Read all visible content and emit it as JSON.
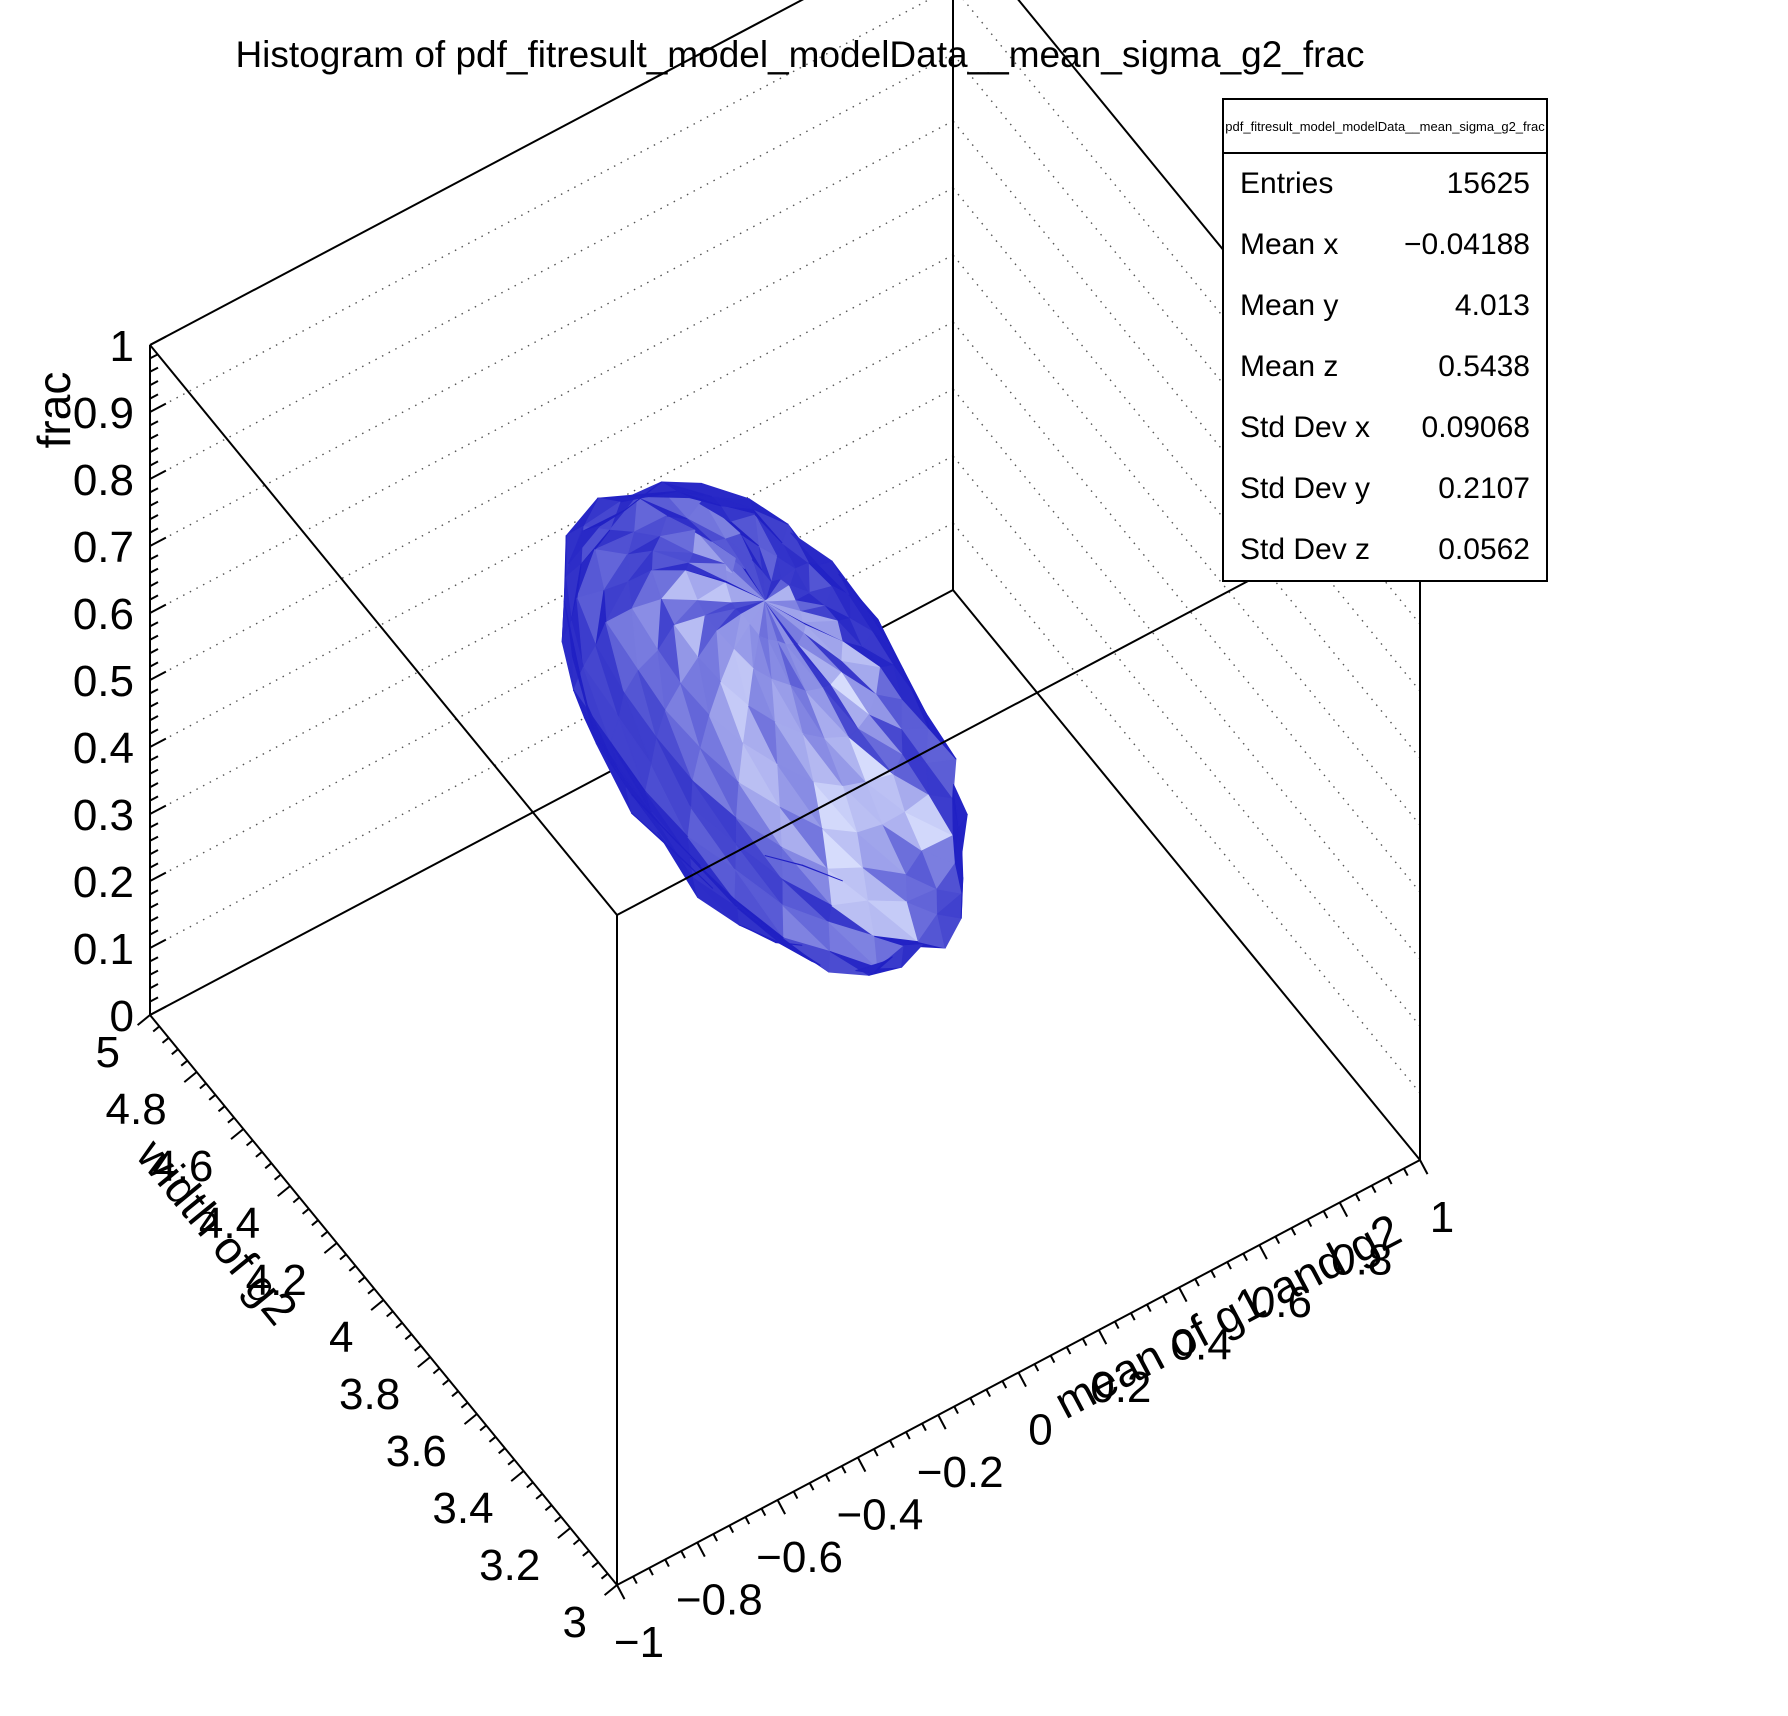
{
  "title": "Histogram of pdf_fitresult_model_modelData__mean_sigma_g2_frac",
  "stats_box": {
    "header": "pdf_fitresult_model_modelData__mean_sigma_g2_frac",
    "rows": [
      {
        "label": "Entries",
        "value": "15625"
      },
      {
        "label": "Mean x",
        "value": "−0.04188"
      },
      {
        "label": "Mean y",
        "value": "4.013"
      },
      {
        "label": "Mean z",
        "value": "0.5438"
      },
      {
        "label": "Std Dev x",
        "value": "0.09068"
      },
      {
        "label": "Std Dev y",
        "value": "0.2107"
      },
      {
        "label": "Std Dev z",
        "value": "0.0562"
      }
    ]
  },
  "chart_data": {
    "type": "isosurface",
    "title": "Histogram of pdf_fitresult_model_modelData__mean_sigma_g2_frac",
    "histogram_name": "pdf_fitresult_model_modelData__mean_sigma_g2_frac",
    "entries": 15625,
    "mean": {
      "x": -0.04188,
      "y": 4.013,
      "z": 0.5438
    },
    "std_dev": {
      "x": 0.09068,
      "y": 0.2107,
      "z": 0.0562
    },
    "axes": {
      "x": {
        "label": "mean of g1 and g2",
        "min": -1,
        "max": 1,
        "tick_step": 0.2,
        "tick_labels": [
          "−1",
          "−0.8",
          "−0.6",
          "−0.4",
          "−0.2",
          "0",
          "0.2",
          "0.4",
          "0.6",
          "0.8",
          "1"
        ]
      },
      "y": {
        "label": "width of g2",
        "min": 3,
        "max": 5,
        "tick_step": 0.2,
        "tick_labels": [
          "3",
          "3.2",
          "3.4",
          "3.6",
          "3.8",
          "4",
          "4.2",
          "4.4",
          "4.6",
          "4.8",
          "5"
        ]
      },
      "z": {
        "label": "frac",
        "min": 0,
        "max": 1,
        "tick_step": 0.1,
        "tick_labels": [
          "0",
          "0.1",
          "0.2",
          "0.3",
          "0.4",
          "0.5",
          "0.6",
          "0.7",
          "0.8",
          "0.9",
          "1"
        ]
      }
    },
    "surface": {
      "shape": "ellipsoid",
      "center": [
        -0.04188,
        4.013,
        0.5438
      ],
      "radii": [
        0.3,
        0.7,
        0.19
      ],
      "base_color": "#2020c4",
      "highlight_color": "#d6dcfc"
    },
    "grid": {
      "style": "dotted",
      "z_levels": [
        0.1,
        0.2,
        0.3,
        0.4,
        0.5,
        0.6,
        0.7,
        0.8,
        0.9
      ]
    },
    "legend_position": "none"
  }
}
